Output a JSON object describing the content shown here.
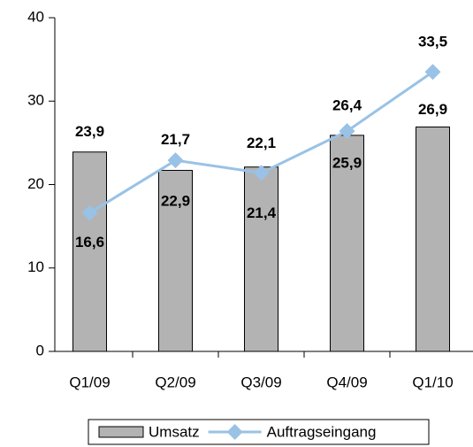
{
  "chart_data": {
    "type": "bar",
    "categories": [
      "Q1/09",
      "Q2/09",
      "Q3/09",
      "Q4/09",
      "Q1/10"
    ],
    "series": [
      {
        "name": "Umsatz",
        "type": "bar",
        "color": "#b3b3b3",
        "values": [
          23.9,
          21.7,
          22.1,
          25.9,
          26.9
        ],
        "value_labels": [
          "23,9",
          "21,7",
          "22,1",
          "25,9",
          "26,9"
        ]
      },
      {
        "name": "Auftragseingang",
        "type": "line",
        "color": "#99c2e6",
        "values": [
          16.6,
          22.9,
          21.4,
          26.4,
          33.5
        ],
        "value_labels": [
          "16,6",
          "22,9",
          "21,4",
          "26,4",
          "33,5"
        ]
      }
    ],
    "ylim": [
      0,
      40
    ],
    "yticks": [
      0,
      10,
      20,
      30,
      40
    ],
    "grid": false,
    "legend": "bottom"
  }
}
